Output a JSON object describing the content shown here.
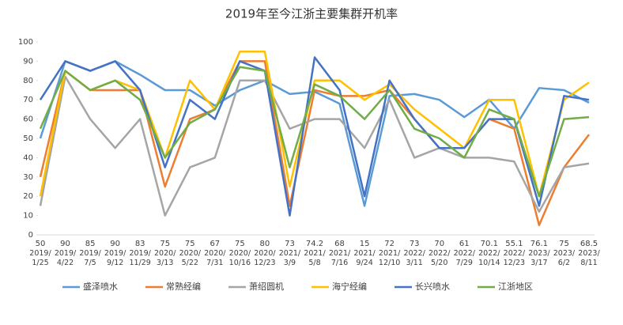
{
  "chart_data": {
    "type": "line",
    "title": "2019年至今江浙主要集群开机率",
    "categories": [
      "2019/\n1/25",
      "2019/\n4/22",
      "2019/\n7/5",
      "2019/\n9/12",
      "2019/\n11/29",
      "2020/\n3/13",
      "2020/\n5/22",
      "2020/\n7/31",
      "2020/\n10/16",
      "2020/\n12/23",
      "2021/\n3/9",
      "2021/\n5/8",
      "2021/\n7/16",
      "2021/\n9/24",
      "2021/\n12/10",
      "2022/\n3/11",
      "2022/\n5/20",
      "2022/\n7/29",
      "2022/\n10/14",
      "2022/\n12/23",
      "2023/\n3/17",
      "2023/\n6/2",
      "2023/\n8/11"
    ],
    "series": [
      {
        "name": "盛泽喷水",
        "color": "#5b9bd5",
        "values": [
          50,
          90,
          85,
          90,
          83,
          75,
          75,
          67,
          75,
          80,
          73,
          74.2,
          68,
          15,
          72,
          73,
          70,
          61,
          70.1,
          55.1,
          76.1,
          75,
          68.5
        ]
      },
      {
        "name": "常熟经编",
        "color": "#ed7d31",
        "values": [
          30,
          85,
          75,
          75,
          75,
          25,
          60,
          65,
          90,
          90,
          15,
          75,
          72,
          72,
          75,
          60,
          45,
          45,
          60,
          55,
          5,
          35,
          52
        ]
      },
      {
        "name": "萧绍圆机",
        "color": "#a5a5a5",
        "values": [
          15,
          82,
          60,
          45,
          60,
          10,
          35,
          40,
          80,
          80,
          55,
          60,
          60,
          45,
          70,
          40,
          45,
          40,
          40,
          38,
          12,
          35,
          37
        ]
      },
      {
        "name": "海宁经编",
        "color": "#ffc000",
        "values": [
          20,
          85,
          75,
          80,
          75,
          40,
          80,
          65,
          95,
          95,
          25,
          80,
          80,
          70,
          78,
          65,
          55,
          45,
          70,
          70,
          20,
          70,
          79
        ]
      },
      {
        "name": "长兴喷水",
        "color": "#4472c4",
        "values": [
          70,
          90,
          85,
          90,
          75,
          35,
          70,
          60,
          90,
          85,
          10,
          92,
          75,
          20,
          80,
          60,
          45,
          45,
          60,
          60,
          15,
          72,
          70
        ]
      },
      {
        "name": "江浙地区",
        "color": "#70ad47",
        "values": [
          55,
          85,
          75,
          80,
          70,
          40,
          58,
          65,
          87,
          85,
          35,
          78,
          72,
          60,
          75,
          55,
          50,
          40,
          65,
          60,
          20,
          60,
          61
        ]
      }
    ],
    "ylim": [
      0,
      100
    ],
    "yticks": [
      0,
      10,
      20,
      30,
      40,
      50,
      60,
      70,
      80,
      90,
      100
    ],
    "grid": false,
    "legend": "bottom"
  }
}
